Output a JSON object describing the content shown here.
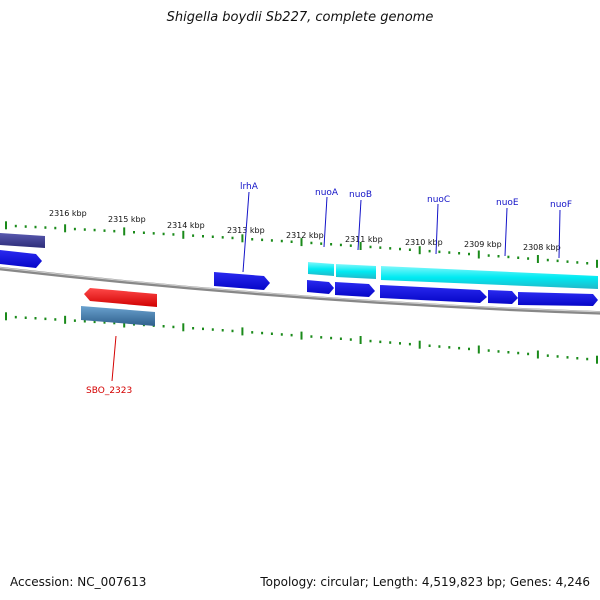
{
  "title": "Shigella boydii Sb227, complete genome",
  "scale_labels": [
    "2316 kbp",
    "2315 kbp",
    "2314 kbp",
    "2313 kbp",
    "2312 kbp",
    "2311 kbp",
    "2310 kbp",
    "2309 kbp",
    "2308 kbp"
  ],
  "genes": {
    "lrhA": "lrhA",
    "nuoA": "nuoA",
    "nuoB": "nuoB",
    "nuoC": "nuoC",
    "nuoE": "nuoE",
    "nuoF": "nuoF",
    "SBO_2323": "SBO_2323"
  },
  "colors": {
    "cds_blue": "#1010e0",
    "rna_cyan": "#00e8f0",
    "pseudo_red": "#e80000",
    "steel_blue": "#4a7fb0",
    "dark_purple": "#3c3c90",
    "tick_green": "#1a8a1a",
    "backbone_gray": "#888888"
  },
  "footer": {
    "accession": "Accession: NC_007613",
    "summary": "Topology: circular; Length: 4,519,823 bp; Genes: 4,246"
  }
}
